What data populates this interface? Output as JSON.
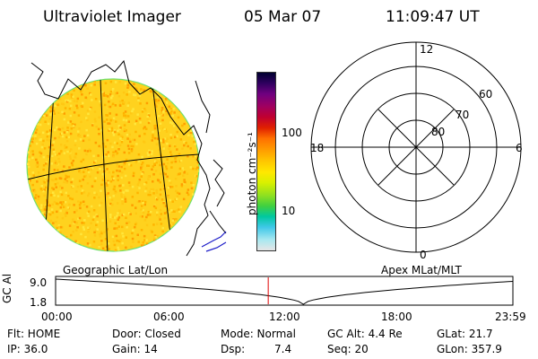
{
  "header": {
    "title": "Ultraviolet Imager",
    "date": "05 Mar 07",
    "time": "11:09:47 UT"
  },
  "colorbar": {
    "unit_label": "photon cm⁻²s⁻¹",
    "ticks": [
      "100",
      "10"
    ],
    "scale": "log",
    "colors": [
      "#e6e6e6",
      "#a8e8f0",
      "#40c8e8",
      "#00c8a0",
      "#40d040",
      "#90e020",
      "#d8f000",
      "#ffe800",
      "#ffc800",
      "#ffa000",
      "#ff7000",
      "#e02000",
      "#c00030",
      "#a00060",
      "#700080",
      "#300060",
      "#000030"
    ]
  },
  "disk": {
    "base_color": "#ffd21e",
    "speckle_colors": [
      "#ffb400",
      "#ffe63c",
      "#ffc814",
      "#ff9e00"
    ],
    "caption": "Geographic Lat/Lon"
  },
  "polar": {
    "caption": "Apex MLat/MLT",
    "mlt_labels": {
      "top": "12",
      "left": "18",
      "right": "6",
      "bottom": "0"
    },
    "lat_labels": [
      "60",
      "70",
      "80"
    ]
  },
  "altitude_panel": {
    "ylabel": "GC Alt",
    "yticks": [
      "9.0",
      "1.8"
    ],
    "xticks": [
      "00:00",
      "06:00",
      "12:00",
      "18:00",
      "23:59"
    ],
    "current_time_marker_hour": 11.16,
    "marker_color": "#e00000"
  },
  "info": {
    "filter": "Flt: HOME",
    "door": "Door: Closed",
    "mode": "Mode: Normal",
    "gc_alt": "GC Alt: 4.4 Re",
    "glat": "GLat: 21.7",
    "ip": "IP: 36.0",
    "gain": "Gain: 14",
    "dsp_label": "Dsp:",
    "dsp_value": "7.4",
    "seq": "Seq: 20",
    "glon": "GLon: 357.9"
  }
}
